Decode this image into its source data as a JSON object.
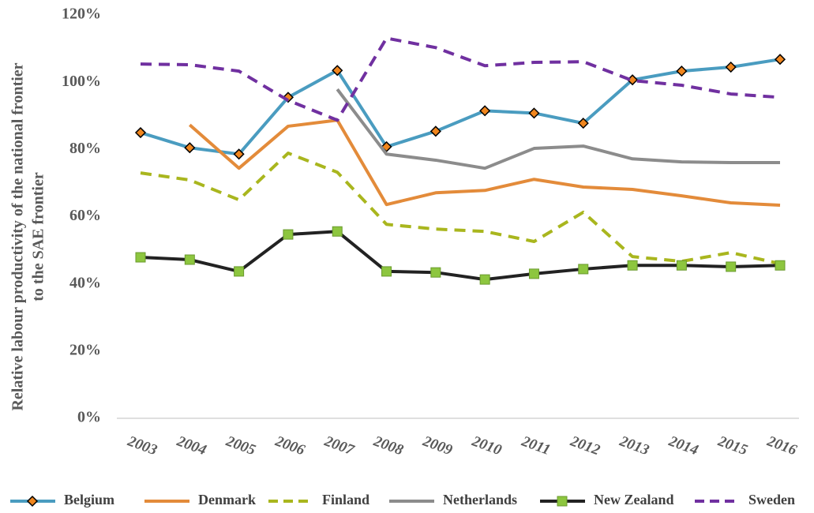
{
  "chart_data": {
    "type": "line",
    "y_label": [
      "Relative labour productivity of the national frontier",
      "to the SAE frontier"
    ],
    "categories": [
      "2003",
      "2004",
      "2005",
      "2006",
      "2007",
      "2008",
      "2009",
      "2010",
      "2011",
      "2012",
      "2013",
      "2014",
      "2015",
      "2016"
    ],
    "ylim": [
      0,
      120
    ],
    "yticks": [
      {
        "value": 0,
        "label": "0%"
      },
      {
        "value": 20,
        "label": "20%"
      },
      {
        "value": 40,
        "label": "40%"
      },
      {
        "value": 60,
        "label": "60%"
      },
      {
        "value": 80,
        "label": "80%"
      },
      {
        "value": 100,
        "label": "100%"
      },
      {
        "value": 120,
        "label": "120%"
      }
    ],
    "legend": "bottom",
    "series": [
      {
        "name": "Belgium",
        "color": "#4a9cc0",
        "dash": "solid",
        "marker": "diamond",
        "marker_color": "#f0861e",
        "values": [
          85,
          80.5,
          78.6,
          95.5,
          103.5,
          80.8,
          85.4,
          91.5,
          90.8,
          87.8,
          100.7,
          103.3,
          104.5,
          106.8
        ]
      },
      {
        "name": "Denmark",
        "color": "#e38b3a",
        "dash": "solid",
        "values": [
          null,
          87.3,
          74.4,
          86.9,
          88.7,
          63.6,
          67.1,
          67.8,
          71.1,
          68.8,
          68.1,
          66.2,
          64.1,
          63.4
        ]
      },
      {
        "name": "Finland",
        "color": "#a9b61e",
        "dash": "dashed",
        "values": [
          73,
          70.9,
          65,
          78.9,
          73.2,
          57.7,
          56.3,
          55.6,
          52.6,
          61.3,
          48.1,
          46.7,
          49.3,
          46
        ]
      },
      {
        "name": "Netherlands",
        "color": "#8c8c8c",
        "dash": "solid",
        "values": [
          null,
          null,
          null,
          null,
          97.9,
          78.6,
          76.8,
          74.4,
          80.3,
          81,
          77.2,
          76.3,
          76.1,
          76.1
        ]
      },
      {
        "name": "New Zealand",
        "color": "#222222",
        "dash": "solid",
        "marker": "square",
        "marker_color": "#8dc63f",
        "values": [
          47.9,
          47.2,
          43.7,
          54.7,
          55.6,
          43.7,
          43.4,
          41.3,
          43,
          44.4,
          45.5,
          45.5,
          45.1,
          45.5
        ]
      },
      {
        "name": "Sweden",
        "color": "#7030a0",
        "dash": "dashed",
        "values": [
          105.4,
          105.2,
          103.3,
          94.6,
          88.7,
          113.1,
          110.3,
          104.9,
          105.9,
          106.1,
          100.5,
          99.1,
          96.5,
          95.5
        ]
      }
    ]
  }
}
